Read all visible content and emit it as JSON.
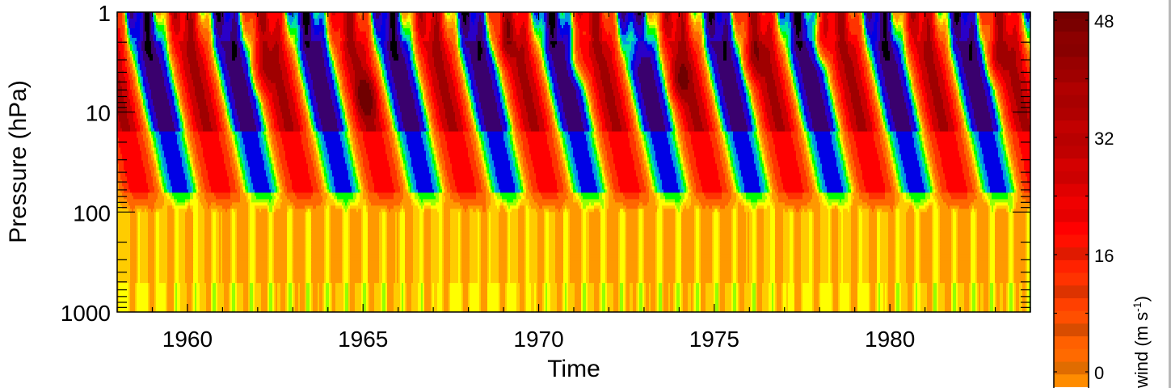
{
  "chart_data": {
    "type": "heatmap",
    "subtype": "filled-contour time-height section",
    "title": "",
    "xlabel": "Time",
    "ylabel": "Pressure (hPa)",
    "colorbar_label": "wind (m s-1)",
    "colorbar_label_parts": {
      "main": "wind (m s",
      "sup": "-1",
      "close": ")"
    },
    "xlim": [
      1958,
      1984
    ],
    "ylim_hPa": [
      1000,
      1
    ],
    "yscale": "log",
    "x_ticks": [
      1960,
      1965,
      1970,
      1975,
      1980
    ],
    "x_tick_labels": [
      "1960",
      "1965",
      "1970",
      "1975",
      "1980"
    ],
    "x_minor_tick_step_years": 1,
    "y_ticks": [
      1,
      10,
      100,
      1000
    ],
    "y_tick_labels": [
      "1",
      "10",
      "100",
      "1000"
    ],
    "colorbar": {
      "ticks": [
        0,
        16,
        32,
        48
      ],
      "tick_labels": [
        "0",
        "16",
        "32",
        "48"
      ],
      "minor_ticks": [
        8,
        24,
        40
      ],
      "visible_range": [
        -2,
        48
      ],
      "levels_step": 2
    },
    "colormap_stops": [
      {
        "v": -30,
        "color": "#000000"
      },
      {
        "v": -26,
        "color": "#3a006e"
      },
      {
        "v": -20,
        "color": "#2a00c8"
      },
      {
        "v": -14,
        "color": "#0000e6"
      },
      {
        "v": -10,
        "color": "#0096e6"
      },
      {
        "v": -6,
        "color": "#00e6a0"
      },
      {
        "v": -3,
        "color": "#00ff00"
      },
      {
        "v": 0,
        "color": "#96ff00"
      },
      {
        "v": 2,
        "color": "#ffff00"
      },
      {
        "v": 4,
        "color": "#ffcc00"
      },
      {
        "v": 6,
        "color": "#ff9900"
      },
      {
        "v": 10,
        "color": "#ff6600"
      },
      {
        "v": 16,
        "color": "#ff3300"
      },
      {
        "v": 24,
        "color": "#ff0000"
      },
      {
        "v": 32,
        "color": "#cc0000"
      },
      {
        "v": 40,
        "color": "#a00000"
      },
      {
        "v": 48,
        "color": "#700000"
      }
    ],
    "colorbar_bands": [
      "#ff8c00",
      "#e06c00",
      "#ff6a00",
      "#ff6000",
      "#d84c00",
      "#ff4f00",
      "#ff4000",
      "#dd3300",
      "#ff3300",
      "#ff2200",
      "#e01a00",
      "#ff1000",
      "#ff0000",
      "#e60000",
      "#f00000",
      "#e00000",
      "#cc0000",
      "#d40000",
      "#c00000",
      "#b80000",
      "#c20000",
      "#b00000",
      "#a80000",
      "#b00000",
      "#a00000",
      "#980000",
      "#880000",
      "#8c0000",
      "#7a0000",
      "#700000"
    ],
    "qbo_description": "Descending alternating easterly (blue/purple, negative) and westerly (red, positive) wind regimes with ~28-month period from ~1 hPa downward to ~70 hPa; weak positive (orange/yellow) values in troposphere 100-1000 hPa",
    "easterly_onsets_top_year": [
      1958.1,
      1960.3,
      1962.0,
      1964.0,
      1966.3,
      1968.6,
      1970.8,
      1973.0,
      1975.0,
      1977.2,
      1979.4,
      1981.6,
      1983.4
    ],
    "strong_westerly_maxima": [
      {
        "year": 1962.1,
        "p_hPa": 4,
        "value": 44
      },
      {
        "year": 1965.1,
        "p_hPa": 7,
        "value": 46
      },
      {
        "year": 1969.0,
        "p_hPa": 2,
        "value": 42
      },
      {
        "year": 1971.1,
        "p_hPa": 3,
        "value": 44
      },
      {
        "year": 1972.8,
        "p_hPa": 2,
        "value": 44
      },
      {
        "year": 1974.0,
        "p_hPa": 5,
        "value": 44
      },
      {
        "year": 1976.1,
        "p_hPa": 3,
        "value": 44
      },
      {
        "year": 1978.0,
        "p_hPa": 2,
        "value": 46
      },
      {
        "year": 1983.0,
        "p_hPa": 3,
        "value": 44
      }
    ]
  }
}
